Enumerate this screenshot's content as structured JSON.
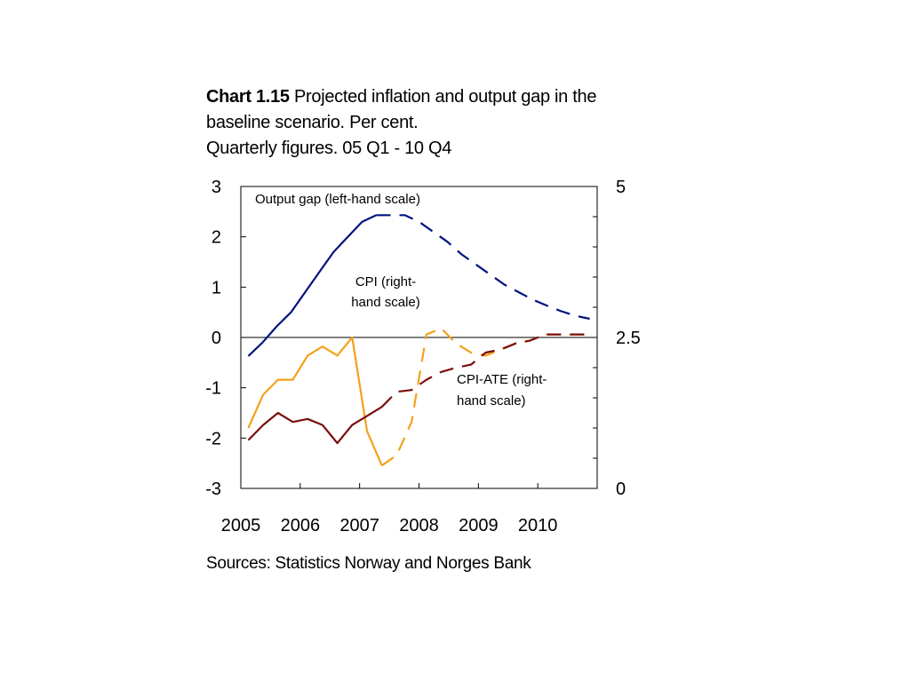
{
  "title": {
    "lead": "Chart 1.15",
    "rest": " Projected inflation and output gap in the",
    "line2": "baseline scenario. Per cent.",
    "line3": "Quarterly figures. 05 Q1 - 10 Q4"
  },
  "source": "Sources: Statistics Norway and Norges Bank",
  "chart_data": {
    "type": "line",
    "x_start": "2005 Q1",
    "x_tick_labels": [
      "2005",
      "2006",
      "2007",
      "2008",
      "2009",
      "2010"
    ],
    "left_axis": {
      "ylim": [
        -3,
        3
      ],
      "ticks": [
        "3",
        "2",
        "1",
        "0",
        "-1",
        "-2",
        "-3"
      ]
    },
    "right_axis": {
      "ylim": [
        0,
        5
      ],
      "ticks": [
        "5",
        "2.5",
        "0"
      ]
    },
    "grid": false,
    "annotations": {
      "output_gap": "Output gap (left-hand scale)",
      "cpi_line1": "CPI (right-",
      "cpi_line2": "hand scale)",
      "cpiate_line1": "CPI-ATE (right-",
      "cpiate_line2": "hand scale)"
    },
    "series": [
      {
        "key": "output_gap",
        "axis": "left",
        "color": "#00137f",
        "projection_start_index": 9,
        "values": [
          -0.37,
          -0.1,
          0.22,
          0.5,
          0.9,
          1.3,
          1.7,
          2.0,
          2.3,
          2.43,
          2.43,
          2.43,
          2.3,
          2.1,
          1.9,
          1.65,
          1.45,
          1.25,
          1.05,
          0.9,
          0.75,
          0.63,
          0.52,
          0.43,
          0.37
        ]
      },
      {
        "key": "cpi",
        "axis": "right",
        "color": "#f4a11c",
        "projection_start_index": 9,
        "values": [
          1.0,
          1.55,
          1.8,
          1.8,
          2.2,
          2.35,
          2.2,
          2.5,
          0.95,
          0.38,
          0.55,
          1.1,
          2.55,
          2.65,
          2.4,
          2.25,
          2.2,
          2.3,
          2.4,
          2.45,
          2.55,
          2.55,
          2.55,
          2.55
        ]
      },
      {
        "key": "cpi_ate",
        "axis": "right",
        "color": "#7b0d0d",
        "projection_start_index": 9,
        "values": [
          0.8,
          1.05,
          1.25,
          1.1,
          1.15,
          1.05,
          0.75,
          1.05,
          1.2,
          1.35,
          1.6,
          1.63,
          1.8,
          1.93,
          2.0,
          2.05,
          2.25,
          2.3,
          2.4,
          2.45,
          2.55,
          2.55,
          2.55,
          2.55
        ]
      }
    ]
  }
}
